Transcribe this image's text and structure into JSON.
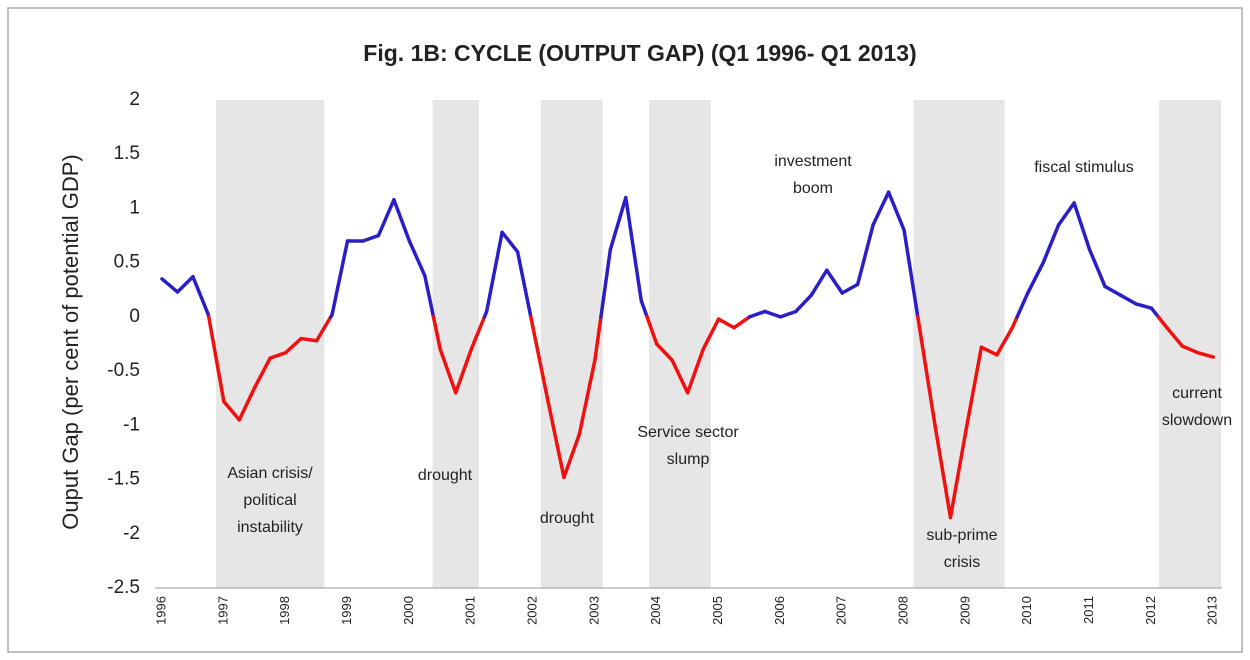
{
  "chart_data": {
    "type": "line",
    "title": "Fig. 1B: CYCLE (OUTPUT GAP) (Q1 1996- Q1 2013)",
    "y_label": "Ouput Gap (per cent of potential GDP)",
    "categories": [
      "1996",
      null,
      null,
      null,
      "1997",
      null,
      null,
      null,
      "1998",
      null,
      null,
      null,
      "1999",
      null,
      null,
      null,
      "2000",
      null,
      null,
      null,
      "2001",
      null,
      null,
      null,
      "2002",
      null,
      null,
      null,
      "2003",
      null,
      null,
      null,
      "2004",
      null,
      null,
      null,
      "2005",
      null,
      null,
      null,
      "2006",
      null,
      null,
      null,
      "2007",
      null,
      null,
      null,
      "2008",
      null,
      null,
      null,
      "2009",
      null,
      null,
      null,
      "2010",
      null,
      null,
      null,
      "2011",
      null,
      null,
      null,
      "2012",
      null,
      null,
      null,
      "2013"
    ],
    "values": [
      0.35,
      0.23,
      0.37,
      0.02,
      -0.78,
      -0.95,
      -0.65,
      -0.38,
      -0.33,
      -0.2,
      -0.22,
      0.02,
      0.7,
      0.7,
      0.75,
      1.08,
      0.7,
      0.38,
      -0.3,
      -0.7,
      -0.3,
      0.05,
      0.78,
      0.6,
      -0.1,
      -0.8,
      -1.48,
      -1.08,
      -0.4,
      0.62,
      1.1,
      0.15,
      -0.25,
      -0.4,
      -0.7,
      -0.3,
      -0.02,
      -0.1,
      0.0,
      0.05,
      0.0,
      0.05,
      0.2,
      0.43,
      0.22,
      0.3,
      0.85,
      1.15,
      0.8,
      -0.1,
      -1.0,
      -1.85,
      -1.05,
      -0.28,
      -0.35,
      -0.1,
      0.22,
      0.5,
      0.85,
      1.05,
      0.62,
      0.28,
      0.2,
      0.12,
      0.08,
      -0.1,
      -0.27,
      -0.33,
      -0.37
    ],
    "positive_color": "#2a1fc6",
    "negative_color": "#f01010",
    "band_color": "#e6e6e6",
    "shaded_bands": [
      [
        3.5,
        10.5
      ],
      [
        17.5,
        20.5
      ],
      [
        24.5,
        28.5
      ],
      [
        31.5,
        35.5
      ],
      [
        48.6,
        54.5
      ],
      [
        64.5,
        68.5
      ]
    ],
    "ylim": [
      -2.5,
      2
    ],
    "yticks": [
      2,
      1.5,
      1,
      0.5,
      0,
      -0.5,
      -1,
      -1.5,
      -2,
      -2.5
    ],
    "annotations": [
      [
        "Asian crisis/",
        "political",
        "instability"
      ],
      [
        "drought"
      ],
      [
        "drought"
      ],
      [
        "Service sector",
        "slump"
      ],
      [
        "investment",
        "boom"
      ],
      [
        "fiscal stimulus"
      ],
      [
        "sub-prime",
        "crisis"
      ],
      [
        "current",
        "slowdown"
      ]
    ]
  }
}
